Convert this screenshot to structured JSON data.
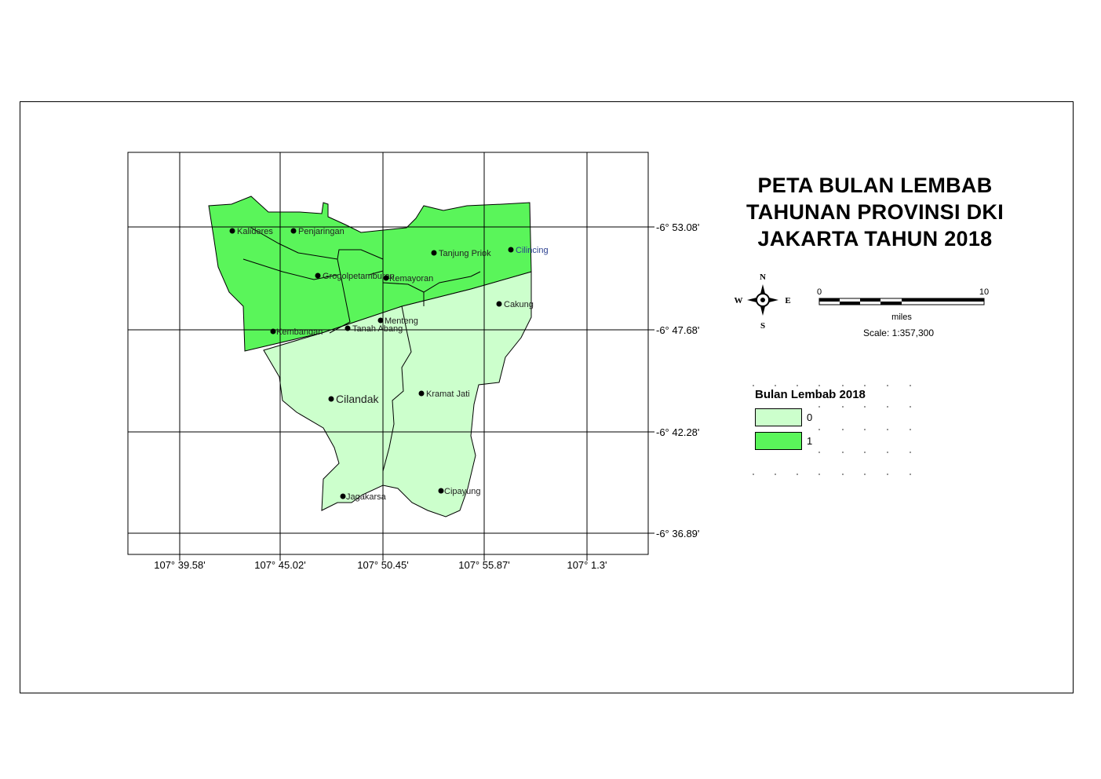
{
  "map": {
    "title": "PETA BULAN LEMBAB\nTAHUNAN PROVINSI DKI\nJAKARTA TAHUN 2018",
    "lat_labels": [
      "-6° 53.08'",
      "-6° 47.68'",
      "-6° 42.28'",
      "-6° 36.89'"
    ],
    "lon_labels": [
      "107° 39.58'",
      "107° 45.02'",
      "107° 50.45'",
      "107° 55.87'",
      "107° 1.3'"
    ],
    "places": [
      {
        "name": "Kalideres",
        "zone": "1"
      },
      {
        "name": "Penjaringan",
        "zone": "1"
      },
      {
        "name": "Tanjung Priok",
        "zone": "1"
      },
      {
        "name": "Cilincing",
        "zone": "1"
      },
      {
        "name": "Grogolpetamburan",
        "zone": "1"
      },
      {
        "name": "Kemayoran",
        "zone": "1"
      },
      {
        "name": "Cakung",
        "zone": "0"
      },
      {
        "name": "Menteng",
        "zone": "1"
      },
      {
        "name": "Kembangan",
        "zone": "1"
      },
      {
        "name": "Tanah Abang",
        "zone": "1"
      },
      {
        "name": "Cilandak",
        "zone": "0"
      },
      {
        "name": "Kramat Jati",
        "zone": "0"
      },
      {
        "name": "Jagakarsa",
        "zone": "0"
      },
      {
        "name": "Cipayung",
        "zone": "0"
      }
    ]
  },
  "north_arrow": {
    "n": "N",
    "s": "S",
    "e": "E",
    "w": "W"
  },
  "scale_bar": {
    "start": "0",
    "end": "10",
    "unit": "miles",
    "scale_text": "Scale: 1:357,300"
  },
  "legend": {
    "title": "Bulan Lembab 2018",
    "items": [
      {
        "label": "0",
        "color": "#ccffcc"
      },
      {
        "label": "1",
        "color": "#5af55a"
      }
    ]
  },
  "colors": {
    "zone_0": "#ccffcc",
    "zone_1": "#5af55a",
    "outline": "#000000"
  }
}
